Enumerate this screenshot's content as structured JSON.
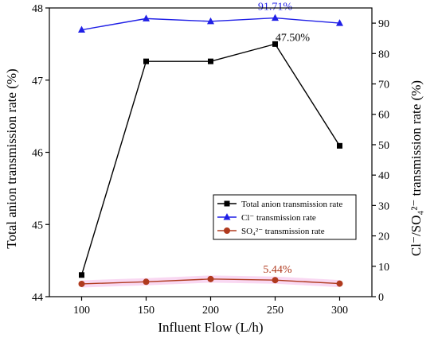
{
  "chart_data": {
    "type": "line",
    "x": [
      100,
      150,
      200,
      250,
      300
    ],
    "xlabel": "Influent Flow (L/h)",
    "x_ticks": [
      "100",
      "150",
      "200",
      "250",
      "300"
    ],
    "xlim": [
      75,
      325
    ],
    "ylabel_left": "Total anion transmission rate (%)",
    "ylim_left": [
      44,
      48
    ],
    "y_ticks_left": [
      "44",
      "45",
      "46",
      "47",
      "48"
    ],
    "ylabel_right": "Cl⁻/SO₄²⁻ transmission rate (%)",
    "ylim_right": [
      0,
      95
    ],
    "y_ticks_right": [
      "0",
      "10",
      "20",
      "30",
      "40",
      "50",
      "60",
      "70",
      "80",
      "90"
    ],
    "series": [
      {
        "name": "Total anion transmission rate",
        "axis": "left",
        "marker": "square",
        "color": "#000000",
        "values": [
          44.3,
          47.26,
          47.26,
          47.5,
          46.09
        ]
      },
      {
        "name": "Cl⁻ transmission rate",
        "axis": "right",
        "marker": "triangle",
        "color": "#1f1fe6",
        "values": [
          87.8,
          91.5,
          90.6,
          91.71,
          90.0
        ]
      },
      {
        "name": "SO₄²⁻ transmission rate",
        "axis": "right",
        "marker": "circle",
        "color": "#b03a1e",
        "values": [
          4.2,
          4.9,
          5.8,
          5.44,
          4.3
        ]
      }
    ],
    "annotations": [
      {
        "text": "91.71%",
        "series": 1,
        "point": 3,
        "color": "#1f1fe6"
      },
      {
        "text": "47.50%",
        "series": 0,
        "point": 3,
        "color": "#000000"
      },
      {
        "text": "5.44%",
        "series": 2,
        "point": 3,
        "color": "#b03a1e"
      }
    ],
    "legend_position": "center-right",
    "grid": false
  }
}
